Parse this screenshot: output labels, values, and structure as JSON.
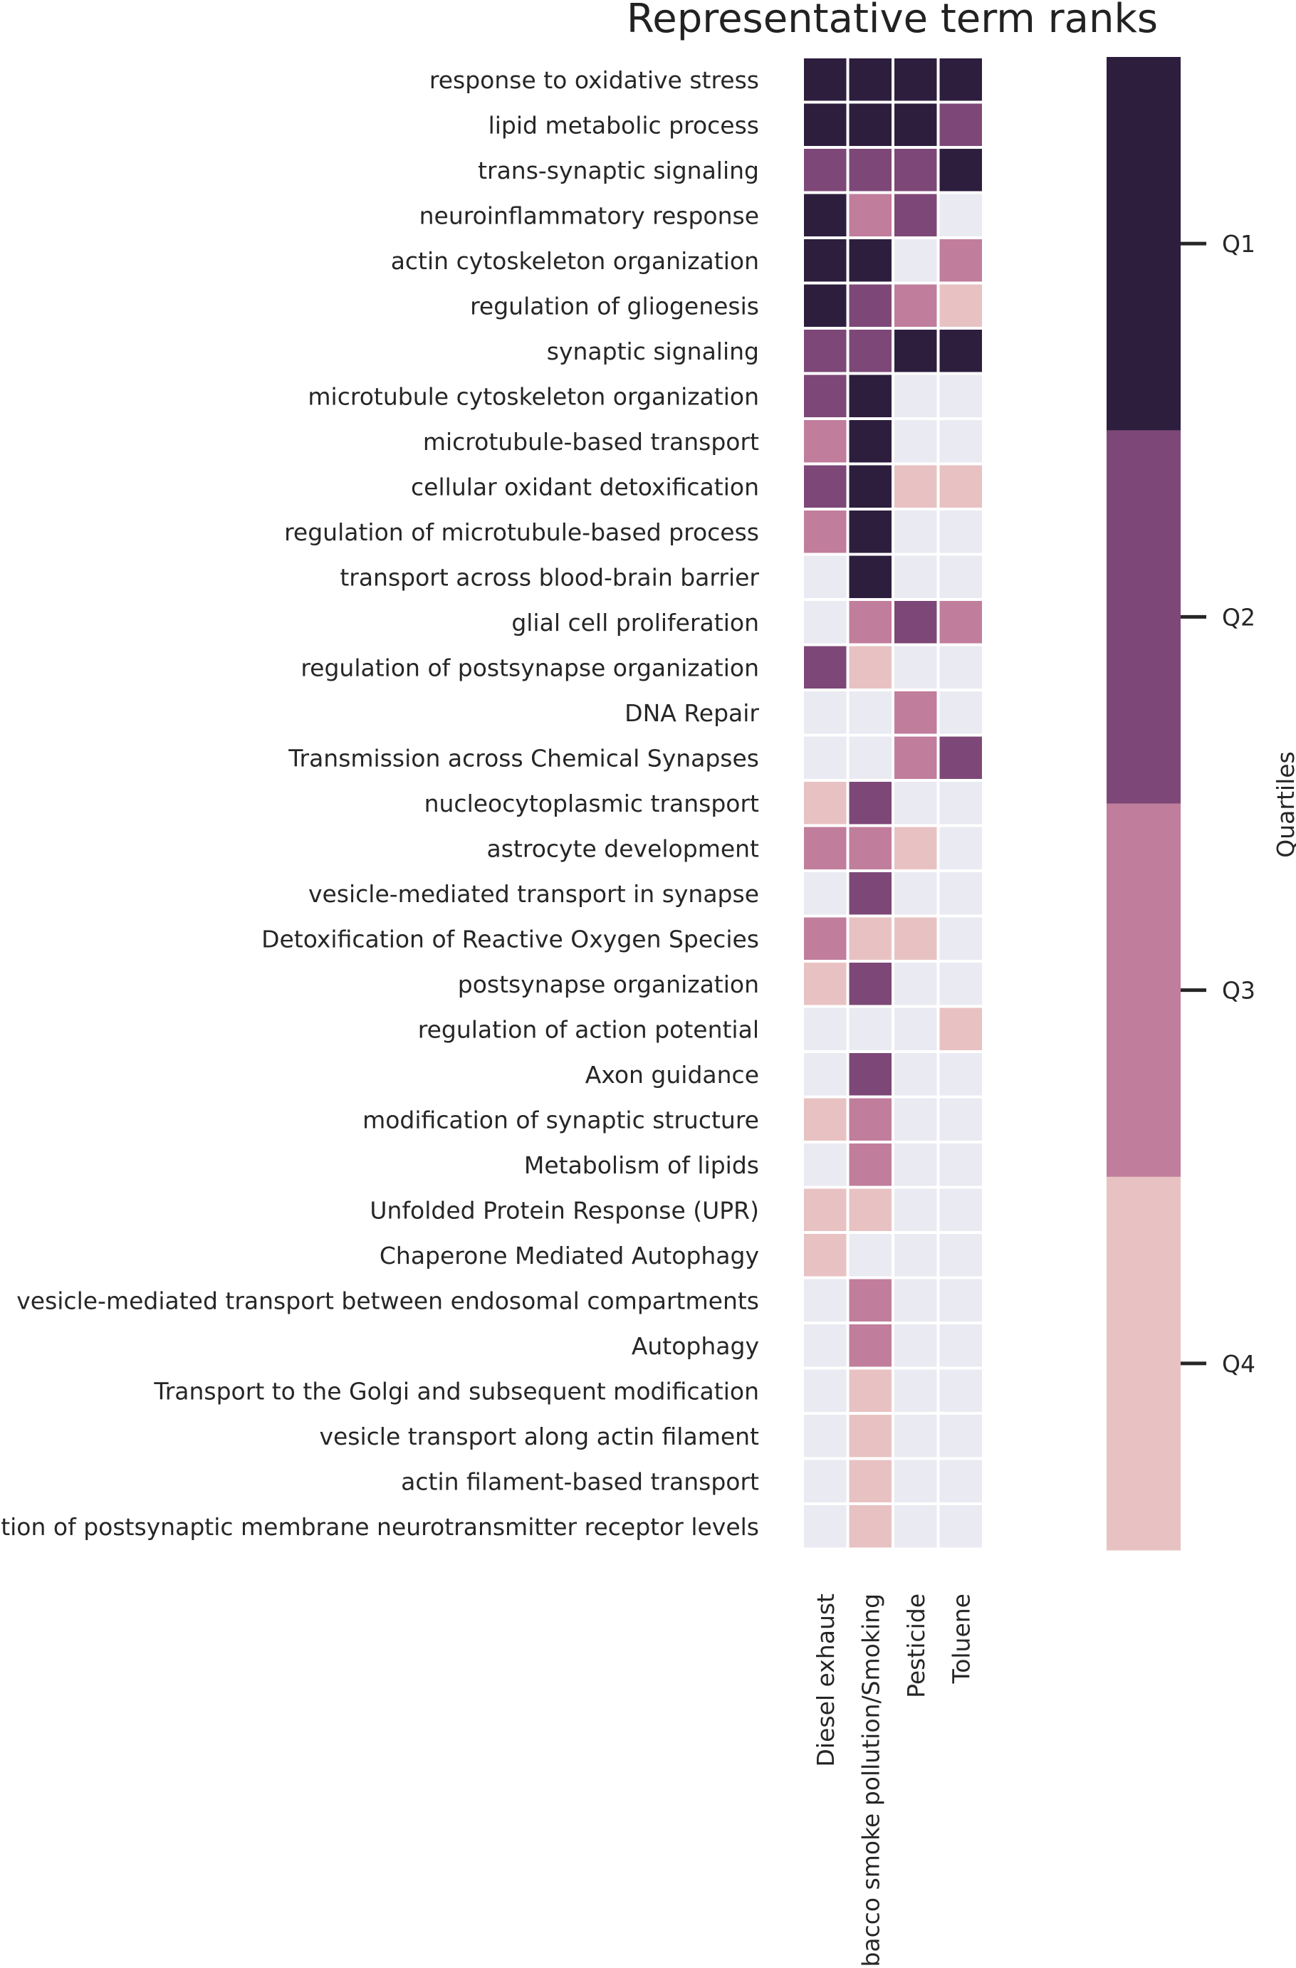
{
  "chart_data": {
    "type": "heatmap",
    "title": "Representative term ranks",
    "rows": [
      "response to oxidative stress",
      "lipid metabolic process",
      "trans-synaptic signaling",
      "neuroinflammatory response",
      "actin cytoskeleton organization",
      "regulation of gliogenesis",
      "synaptic signaling",
      "microtubule cytoskeleton organization",
      "microtubule-based transport",
      "cellular oxidant detoxification",
      "regulation of microtubule-based process",
      "transport across blood-brain barrier",
      "glial cell proliferation",
      "regulation of postsynapse organization",
      "DNA Repair",
      "Transmission across Chemical Synapses",
      "nucleocytoplasmic transport",
      "astrocyte development",
      "vesicle-mediated transport in synapse",
      "Detoxification of Reactive Oxygen Species",
      "postsynapse organization",
      "regulation of action potential",
      "Axon guidance",
      "modification of synaptic structure",
      "Metabolism of lipids",
      "Unfolded Protein Response (UPR)",
      "Chaperone Mediated Autophagy",
      "vesicle-mediated transport between endosomal compartments",
      "Autophagy",
      "Transport to the Golgi and subsequent modification",
      "vesicle transport along actin filament",
      "actin filament-based transport",
      "regulation of postsynaptic membrane neurotransmitter receptor levels"
    ],
    "columns": [
      "Diesel exhaust",
      "Tobacco smoke pollution/Smoking",
      "Pesticide",
      "Toluene"
    ],
    "values": [
      [
        1,
        1,
        1,
        1
      ],
      [
        1,
        1,
        1,
        2
      ],
      [
        2,
        2,
        2,
        1
      ],
      [
        1,
        3,
        2,
        null
      ],
      [
        1,
        1,
        null,
        3
      ],
      [
        1,
        2,
        3,
        4
      ],
      [
        2,
        2,
        1,
        1
      ],
      [
        2,
        1,
        null,
        null
      ],
      [
        3,
        1,
        null,
        null
      ],
      [
        2,
        1,
        4,
        4
      ],
      [
        3,
        1,
        null,
        null
      ],
      [
        null,
        1,
        null,
        null
      ],
      [
        null,
        3,
        2,
        3
      ],
      [
        2,
        4,
        null,
        null
      ],
      [
        null,
        null,
        3,
        null
      ],
      [
        null,
        null,
        3,
        2
      ],
      [
        4,
        2,
        null,
        null
      ],
      [
        3,
        3,
        4,
        null
      ],
      [
        null,
        2,
        null,
        null
      ],
      [
        3,
        4,
        4,
        null
      ],
      [
        4,
        2,
        null,
        null
      ],
      [
        null,
        null,
        null,
        4
      ],
      [
        null,
        2,
        null,
        null
      ],
      [
        4,
        3,
        null,
        null
      ],
      [
        null,
        3,
        null,
        null
      ],
      [
        4,
        4,
        null,
        null
      ],
      [
        4,
        null,
        null,
        null
      ],
      [
        null,
        3,
        null,
        null
      ],
      [
        null,
        3,
        null,
        null
      ],
      [
        null,
        4,
        null,
        null
      ],
      [
        null,
        4,
        null,
        null
      ],
      [
        null,
        4,
        null,
        null
      ],
      [
        null,
        4,
        null,
        null
      ]
    ],
    "colorbar": {
      "label": "Quartiles",
      "ticks": [
        "Q1",
        "Q2",
        "Q3",
        "Q4"
      ],
      "colors": [
        "#2d1e3e",
        "#7d4877",
        "#c17d9c",
        "#e8c2c2"
      ],
      "missing_color": "#eaeaf2"
    }
  }
}
